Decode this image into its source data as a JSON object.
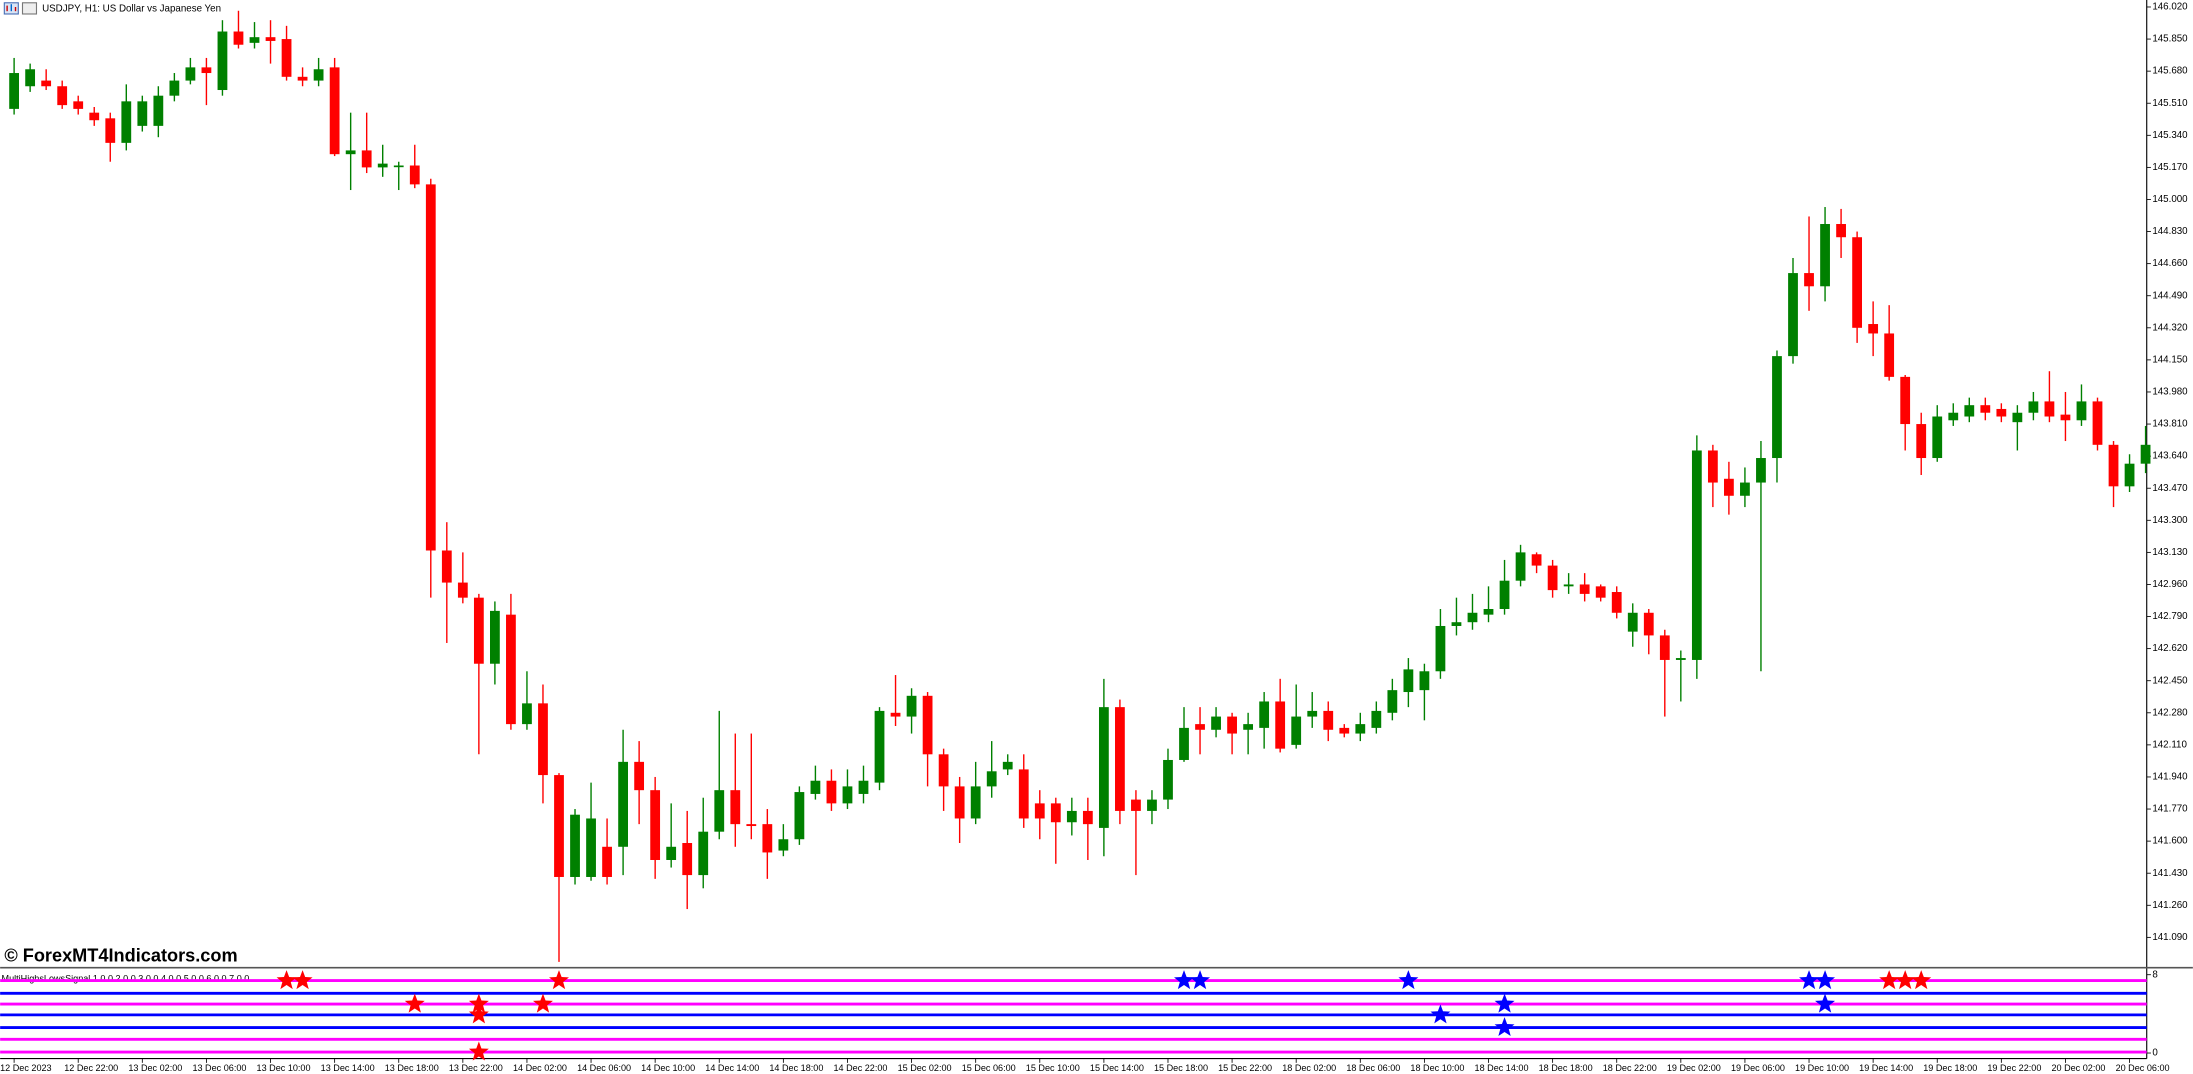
{
  "chart_data": {
    "type": "candlestick",
    "title": "USDJPY, H1:  US Dollar vs Japanese Yen",
    "watermark": "© ForexMT4Indicators.com",
    "up_color": "#008000",
    "down_color": "#ff0000",
    "categories": [
      "12 Dec 2023",
      null,
      null,
      null,
      "12 Dec 22:00",
      null,
      null,
      null,
      "13 Dec 02:00",
      null,
      null,
      null,
      "13 Dec 06:00",
      null,
      null,
      null,
      "13 Dec 10:00",
      null,
      null,
      null,
      "13 Dec 14:00",
      null,
      null,
      null,
      "13 Dec 18:00",
      null,
      null,
      null,
      "13 Dec 22:00",
      null,
      null,
      null,
      "14 Dec 02:00",
      null,
      null,
      null,
      "14 Dec 06:00",
      null,
      null,
      null,
      "14 Dec 10:00",
      null,
      null,
      null,
      "14 Dec 14:00",
      null,
      null,
      null,
      "14 Dec 18:00",
      null,
      null,
      null,
      "14 Dec 22:00",
      null,
      null,
      null,
      "15 Dec 02:00",
      null,
      null,
      null,
      "15 Dec 06:00",
      null,
      null,
      null,
      "15 Dec 10:00",
      null,
      null,
      null,
      "15 Dec 14:00",
      null,
      null,
      null,
      "15 Dec 18:00",
      null,
      null,
      null,
      "15 Dec 22:00",
      null,
      null,
      null,
      "18 Dec 02:00",
      null,
      null,
      null,
      "18 Dec 06:00",
      null,
      null,
      null,
      "18 Dec 10:00",
      null,
      null,
      null,
      "18 Dec 14:00",
      null,
      null,
      null,
      "18 Dec 18:00",
      null,
      null,
      null,
      "18 Dec 22:00",
      null,
      null,
      null,
      "19 Dec 02:00",
      null,
      null,
      null,
      "19 Dec 06:00",
      null,
      null,
      null,
      "19 Dec 10:00",
      null,
      null,
      null,
      "19 Dec 14:00",
      null,
      null,
      null,
      "19 Dec 18:00",
      null,
      null,
      null,
      "19 Dec 22:00",
      null,
      null,
      null,
      "20 Dec 02:00",
      null,
      null,
      null,
      "20 Dec 06:00",
      null
    ],
    "open": [
      145.48,
      145.6,
      145.63,
      145.6,
      145.52,
      145.46,
      145.43,
      145.3,
      145.39,
      145.39,
      145.55,
      145.63,
      145.7,
      145.58,
      145.89,
      145.83,
      145.86,
      145.85,
      145.65,
      145.63,
      145.7,
      145.24,
      145.26,
      145.17,
      145.18,
      145.18,
      145.08,
      143.14,
      142.97,
      142.89,
      142.54,
      142.8,
      142.22,
      142.33,
      141.95,
      141.41,
      141.41,
      141.57,
      141.57,
      142.02,
      141.87,
      141.5,
      141.59,
      141.42,
      141.65,
      141.87,
      141.69,
      141.69,
      141.55,
      141.61,
      141.85,
      141.92,
      141.8,
      141.85,
      141.91,
      142.28,
      142.26,
      142.37,
      142.06,
      141.89,
      141.72,
      141.89,
      141.98,
      141.98,
      141.8,
      141.8,
      141.7,
      141.76,
      141.67,
      142.31,
      141.82,
      141.76,
      141.82,
      142.03,
      142.22,
      142.19,
      142.26,
      142.19,
      142.2,
      142.34,
      142.11,
      142.26,
      142.29,
      142.2,
      142.17,
      142.2,
      142.28,
      142.39,
      142.4,
      142.5,
      142.74,
      142.76,
      142.8,
      142.83,
      142.98,
      143.12,
      143.06,
      142.95,
      142.96,
      142.95,
      142.92,
      142.71,
      142.81,
      142.69,
      142.56,
      142.56,
      143.67,
      143.52,
      143.43,
      143.5,
      143.63,
      144.17,
      144.61,
      144.54,
      144.87,
      144.8,
      144.34,
      144.29,
      144.06,
      143.81,
      143.63,
      143.83,
      143.85,
      143.91,
      143.89,
      143.82,
      143.87,
      143.93,
      143.86,
      143.83,
      143.93,
      143.7,
      143.48,
      143.6
    ],
    "high": [
      145.75,
      145.72,
      145.69,
      145.63,
      145.55,
      145.49,
      145.46,
      145.61,
      145.55,
      145.6,
      145.67,
      145.75,
      145.75,
      145.95,
      146.0,
      145.94,
      145.95,
      145.92,
      145.7,
      145.75,
      145.75,
      145.46,
      145.46,
      145.29,
      145.2,
      145.29,
      145.11,
      143.29,
      143.13,
      142.91,
      142.87,
      142.91,
      142.5,
      142.43,
      141.96,
      141.77,
      141.91,
      141.72,
      142.19,
      142.13,
      141.94,
      141.8,
      141.76,
      141.83,
      142.29,
      142.17,
      142.17,
      141.77,
      141.69,
      141.89,
      142.0,
      141.98,
      141.98,
      142.0,
      142.31,
      142.48,
      142.41,
      142.39,
      142.09,
      141.94,
      142.02,
      142.13,
      142.06,
      142.06,
      141.87,
      141.83,
      141.83,
      141.83,
      142.46,
      142.35,
      141.87,
      141.87,
      142.09,
      142.31,
      142.31,
      142.31,
      142.28,
      142.28,
      142.39,
      142.46,
      142.43,
      142.39,
      142.34,
      142.22,
      142.28,
      142.34,
      142.46,
      142.57,
      142.54,
      142.83,
      142.89,
      142.91,
      142.95,
      143.09,
      143.17,
      143.13,
      143.09,
      143.02,
      143.02,
      142.96,
      142.95,
      142.86,
      142.83,
      142.72,
      142.61,
      143.75,
      143.7,
      143.61,
      143.58,
      143.72,
      144.2,
      144.69,
      144.91,
      144.96,
      144.95,
      144.83,
      144.46,
      144.44,
      144.07,
      143.87,
      143.91,
      143.92,
      143.95,
      143.95,
      143.92,
      143.91,
      143.98,
      144.09,
      143.98,
      144.02,
      143.95,
      143.72,
      143.65,
      143.8
    ],
    "low": [
      145.45,
      145.57,
      145.58,
      145.48,
      145.45,
      145.39,
      145.2,
      145.26,
      145.36,
      145.33,
      145.52,
      145.61,
      145.5,
      145.55,
      145.8,
      145.8,
      145.72,
      145.63,
      145.6,
      145.6,
      145.23,
      145.05,
      145.14,
      145.12,
      145.05,
      145.06,
      142.89,
      142.65,
      142.86,
      142.06,
      142.43,
      142.19,
      142.19,
      141.8,
      140.96,
      141.37,
      141.39,
      141.37,
      141.42,
      141.69,
      141.4,
      141.46,
      141.24,
      141.35,
      141.61,
      141.57,
      141.61,
      141.4,
      141.52,
      141.58,
      141.82,
      141.76,
      141.77,
      141.8,
      141.87,
      142.21,
      142.17,
      141.89,
      141.76,
      141.59,
      141.69,
      141.83,
      141.95,
      141.67,
      141.61,
      141.48,
      141.63,
      141.5,
      141.52,
      141.69,
      141.42,
      141.69,
      141.77,
      142.02,
      142.06,
      142.15,
      142.06,
      142.06,
      142.09,
      142.07,
      142.09,
      142.2,
      142.13,
      142.15,
      142.13,
      142.17,
      142.24,
      142.31,
      142.24,
      142.46,
      142.69,
      142.72,
      142.76,
      142.8,
      142.95,
      143.02,
      142.89,
      142.91,
      142.87,
      142.87,
      142.78,
      142.63,
      142.59,
      142.26,
      142.34,
      142.46,
      143.37,
      143.33,
      143.37,
      142.5,
      143.5,
      144.13,
      144.41,
      144.46,
      144.69,
      144.24,
      144.17,
      144.04,
      143.67,
      143.54,
      143.61,
      143.8,
      143.82,
      143.83,
      143.82,
      143.67,
      143.83,
      143.82,
      143.72,
      143.8,
      143.67,
      143.37,
      143.45,
      143.55
    ],
    "close": [
      145.67,
      145.69,
      145.6,
      145.5,
      145.48,
      145.42,
      145.3,
      145.52,
      145.52,
      145.55,
      145.63,
      145.7,
      145.67,
      145.89,
      145.82,
      145.86,
      145.84,
      145.65,
      145.63,
      145.69,
      145.24,
      145.26,
      145.17,
      145.19,
      145.18,
      145.08,
      143.14,
      142.97,
      142.89,
      142.54,
      142.82,
      142.22,
      142.33,
      141.95,
      141.41,
      141.74,
      141.72,
      141.41,
      142.02,
      141.87,
      141.5,
      141.57,
      141.42,
      141.65,
      141.87,
      141.69,
      141.68,
      141.54,
      141.61,
      141.86,
      141.92,
      141.8,
      141.89,
      141.92,
      142.29,
      142.26,
      142.37,
      142.06,
      141.89,
      141.72,
      141.89,
      141.97,
      142.02,
      141.72,
      141.72,
      141.7,
      141.76,
      141.69,
      142.31,
      141.76,
      141.76,
      141.82,
      142.03,
      142.2,
      142.19,
      142.26,
      142.17,
      142.22,
      142.34,
      142.09,
      142.26,
      142.29,
      142.19,
      142.17,
      142.22,
      142.29,
      142.4,
      142.51,
      142.5,
      142.74,
      142.76,
      142.81,
      142.83,
      142.98,
      143.13,
      143.06,
      142.93,
      142.96,
      142.91,
      142.89,
      142.81,
      142.81,
      142.69,
      142.56,
      142.57,
      143.67,
      143.5,
      143.43,
      143.5,
      143.63,
      144.17,
      144.61,
      144.54,
      144.87,
      144.8,
      144.32,
      144.29,
      144.06,
      143.81,
      143.63,
      143.85,
      143.87,
      143.91,
      143.87,
      143.85,
      143.87,
      143.93,
      143.85,
      143.83,
      143.93,
      143.7,
      143.48,
      143.6,
      143.7
    ],
    "ylim": [
      140.944,
      146.057
    ],
    "yticks": [
      {
        "value": 146.02,
        "label": "146.020"
      },
      {
        "value": 145.85,
        "label": "145.850"
      },
      {
        "value": 145.68,
        "label": "145.680"
      },
      {
        "value": 145.51,
        "label": "145.510"
      },
      {
        "value": 145.34,
        "label": "145.340"
      },
      {
        "value": 145.17,
        "label": "145.170"
      },
      {
        "value": 145.0,
        "label": "145.000"
      },
      {
        "value": 144.83,
        "label": "144.830"
      },
      {
        "value": 144.66,
        "label": "144.660"
      },
      {
        "value": 144.49,
        "label": "144.490"
      },
      {
        "value": 144.32,
        "label": "144.320"
      },
      {
        "value": 144.15,
        "label": "144.150"
      },
      {
        "value": 143.98,
        "label": "143.980"
      },
      {
        "value": 143.81,
        "label": "143.810"
      },
      {
        "value": 143.64,
        "label": "143.640"
      },
      {
        "value": 143.47,
        "label": "143.470"
      },
      {
        "value": 143.3,
        "label": "143.300"
      },
      {
        "value": 143.13,
        "label": "143.130"
      },
      {
        "value": 142.96,
        "label": "142.960"
      },
      {
        "value": 142.79,
        "label": "142.790"
      },
      {
        "value": 142.62,
        "label": "142.620"
      },
      {
        "value": 142.45,
        "label": "142.450"
      },
      {
        "value": 142.28,
        "label": "142.280"
      },
      {
        "value": 142.11,
        "label": "142.110"
      },
      {
        "value": 141.94,
        "label": "141.940"
      },
      {
        "value": 141.77,
        "label": "141.770"
      },
      {
        "value": 141.6,
        "label": "141.600"
      },
      {
        "value": 141.43,
        "label": "141.430"
      },
      {
        "value": 141.26,
        "label": "141.260"
      },
      {
        "value": 141.09,
        "label": "141.090"
      }
    ],
    "indicator": {
      "name": "MultiHighsLowsSignal 1 0 0 2 0 0 3 0 0 4 0 0 5 0 0 6 0 0 7 0 0",
      "ylim": [
        0,
        8
      ],
      "yticks": [
        8,
        0
      ],
      "levels": [
        {
          "value": 7.4,
          "color": "#ff00ff"
        },
        {
          "value": 6.1,
          "color": "#0000ff"
        },
        {
          "value": 5,
          "color": "#ff00ff"
        },
        {
          "value": 3.9,
          "color": "#0000ff"
        },
        {
          "value": 2.6,
          "color": "#0000ff"
        },
        {
          "value": 1.4,
          "color": "#ff00ff"
        },
        {
          "value": 0.1,
          "color": "#ff00ff"
        }
      ],
      "signals": [
        {
          "index": 17,
          "level": 7.4,
          "color": "#ff0000"
        },
        {
          "index": 18,
          "level": 7.4,
          "color": "#ff0000"
        },
        {
          "index": 34,
          "level": 7.4,
          "color": "#ff0000"
        },
        {
          "index": 73,
          "level": 7.4,
          "color": "#0000ff"
        },
        {
          "index": 74,
          "level": 7.4,
          "color": "#0000ff"
        },
        {
          "index": 87,
          "level": 7.4,
          "color": "#0000ff"
        },
        {
          "index": 112,
          "level": 7.4,
          "color": "#0000ff"
        },
        {
          "index": 113,
          "level": 7.4,
          "color": "#0000ff"
        },
        {
          "index": 117,
          "level": 7.4,
          "color": "#ff0000"
        },
        {
          "index": 118,
          "level": 7.4,
          "color": "#ff0000"
        },
        {
          "index": 119,
          "level": 7.4,
          "color": "#ff0000"
        },
        {
          "index": 25,
          "level": 5,
          "color": "#ff0000"
        },
        {
          "index": 29,
          "level": 5,
          "color": "#ff0000"
        },
        {
          "index": 33,
          "level": 5,
          "color": "#ff0000"
        },
        {
          "index": 93,
          "level": 5,
          "color": "#0000ff"
        },
        {
          "index": 113,
          "level": 5,
          "color": "#0000ff"
        },
        {
          "index": 29,
          "level": 3.9,
          "color": "#ff0000"
        },
        {
          "index": 89,
          "level": 3.9,
          "color": "#0000ff"
        },
        {
          "index": 93,
          "level": 2.6,
          "color": "#0000ff"
        },
        {
          "index": 29,
          "level": 0.1,
          "color": "#ff0000"
        }
      ]
    }
  }
}
